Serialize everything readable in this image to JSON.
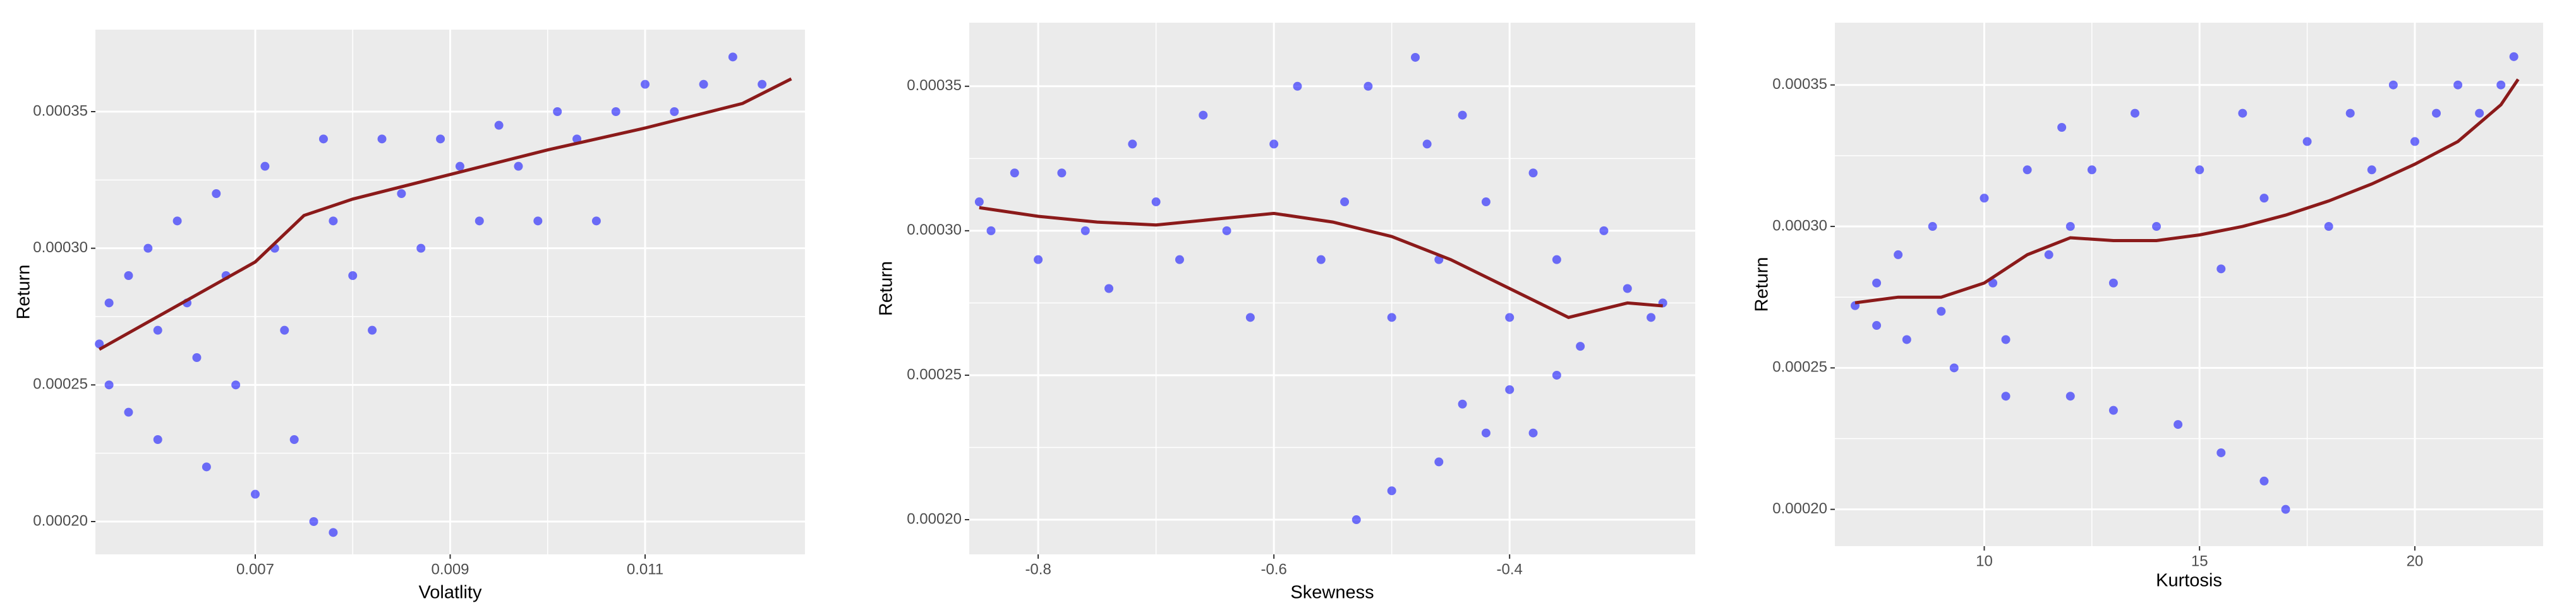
{
  "chart_data": [
    {
      "type": "scatter",
      "x_label": "Volatlity",
      "y_label": "Return",
      "color": "#0000ff",
      "x": [
        0.0054,
        0.0055,
        0.0055,
        0.0057,
        0.0057,
        0.0059,
        0.006,
        0.006,
        0.0062,
        0.0063,
        0.0064,
        0.0065,
        0.0066,
        0.0067,
        0.0068,
        0.007,
        0.0071,
        0.0072,
        0.0073,
        0.0074,
        0.0076,
        0.0078,
        0.0077,
        0.0078,
        0.008,
        0.0082,
        0.0083,
        0.0085,
        0.0087,
        0.0089,
        0.0091,
        0.0093,
        0.0095,
        0.0097,
        0.0099,
        0.0101,
        0.0103,
        0.0105,
        0.0107,
        0.011,
        0.0113,
        0.0116,
        0.0119,
        0.0122
      ],
      "values": [
        0.000265,
        0.00028,
        0.00025,
        0.00029,
        0.00024,
        0.0003,
        0.00027,
        0.00023,
        0.00031,
        0.00028,
        0.00026,
        0.00022,
        0.00032,
        0.00029,
        0.00025,
        0.00021,
        0.00033,
        0.0003,
        0.00027,
        0.00023,
        0.0002,
        0.000196,
        0.00034,
        0.00031,
        0.00029,
        0.00027,
        0.00034,
        0.00032,
        0.0003,
        0.00034,
        0.00033,
        0.00031,
        0.000345,
        0.00033,
        0.00031,
        0.00035,
        0.00034,
        0.00031,
        0.00035,
        0.00036,
        0.00035,
        0.00036,
        0.00037,
        0.00036
      ],
      "smooth": {
        "color": "#8b1a1a",
        "x": [
          0.0054,
          0.006,
          0.007,
          0.0075,
          0.008,
          0.009,
          0.01,
          0.011,
          0.012,
          0.0125
        ],
        "values": [
          0.000263,
          0.000275,
          0.000295,
          0.000312,
          0.000318,
          0.000327,
          0.000336,
          0.000344,
          0.000353,
          0.000362
        ]
      },
      "xlim": [
        0.00536,
        0.01264
      ],
      "ylim": [
        0.000188,
        0.00038
      ],
      "xticks": [
        0.007,
        0.009,
        0.011
      ],
      "yticks": [
        {
          "value": 0.0002,
          "label": "0.00020"
        },
        0.00025,
        {
          "value": 0.0003,
          "label": "0.00030"
        },
        0.00035
      ],
      "grid": true
    },
    {
      "type": "scatter",
      "x_label": "Skewness",
      "y_label": "Return",
      "color": "#0000ff",
      "x": [
        -0.85,
        -0.84,
        -0.82,
        -0.8,
        -0.78,
        -0.76,
        -0.74,
        -0.72,
        -0.7,
        -0.68,
        -0.66,
        -0.64,
        -0.62,
        -0.6,
        -0.58,
        -0.56,
        -0.54,
        -0.52,
        -0.5,
        -0.48,
        -0.47,
        -0.46,
        -0.44,
        -0.42,
        -0.4,
        -0.38,
        -0.36,
        -0.34,
        -0.32,
        -0.3,
        -0.28,
        -0.27,
        -0.36,
        -0.38,
        -0.42,
        -0.46,
        -0.5,
        -0.53,
        -0.44,
        -0.4
      ],
      "values": [
        0.00031,
        0.0003,
        0.00032,
        0.00029,
        0.00032,
        0.0003,
        0.00028,
        0.00033,
        0.00031,
        0.00029,
        0.00034,
        0.0003,
        0.00027,
        0.00033,
        0.00035,
        0.00029,
        0.00031,
        0.00035,
        0.00027,
        0.00036,
        0.00033,
        0.00029,
        0.00034,
        0.00031,
        0.00027,
        0.00032,
        0.00029,
        0.00026,
        0.0003,
        0.00028,
        0.00027,
        0.000275,
        0.00025,
        0.00023,
        0.00023,
        0.00022,
        0.00021,
        0.0002,
        0.00024,
        0.000245
      ],
      "smooth": {
        "color": "#8b1a1a",
        "x": [
          -0.85,
          -0.8,
          -0.75,
          -0.7,
          -0.65,
          -0.6,
          -0.55,
          -0.5,
          -0.45,
          -0.4,
          -0.35,
          -0.3,
          -0.27
        ],
        "values": [
          0.000308,
          0.000305,
          0.000303,
          0.000302,
          0.000304,
          0.000306,
          0.000303,
          0.000298,
          0.00029,
          0.00028,
          0.00027,
          0.000275,
          0.000274
        ]
      },
      "xlim": [
        -0.8585,
        -0.2425
      ],
      "ylim": [
        0.000188,
        0.000372
      ],
      "xticks": [
        -0.8,
        -0.6,
        -0.4
      ],
      "yticks": [
        {
          "value": 0.0002,
          "label": "0.00020"
        },
        0.00025,
        {
          "value": 0.0003,
          "label": "0.00030"
        },
        0.00035
      ],
      "grid": true
    },
    {
      "type": "scatter",
      "x_label": "Kurtosis",
      "y_label": "Return",
      "color": "#0000ff",
      "x": [
        7,
        7.5,
        7.5,
        8,
        8.2,
        8.8,
        9,
        9.3,
        10,
        10.2,
        10.5,
        10.5,
        11,
        11.5,
        11.8,
        12,
        12,
        12.5,
        13,
        13,
        13.5,
        14,
        14.5,
        15,
        15.5,
        15.5,
        16,
        16.5,
        16.5,
        17,
        17.5,
        18,
        18.5,
        19,
        19.5,
        20,
        20.5,
        21,
        21.5,
        22,
        22.3
      ],
      "values": [
        0.000272,
        0.00028,
        0.000265,
        0.00029,
        0.00026,
        0.0003,
        0.00027,
        0.00025,
        0.00031,
        0.00028,
        0.00026,
        0.00024,
        0.00032,
        0.00029,
        0.000335,
        0.0003,
        0.00024,
        0.00032,
        0.00028,
        0.000235,
        0.00034,
        0.0003,
        0.00023,
        0.00032,
        0.000285,
        0.00022,
        0.00034,
        0.00031,
        0.00021,
        0.0002,
        0.00033,
        0.0003,
        0.00034,
        0.00032,
        0.00035,
        0.00033,
        0.00034,
        0.00035,
        0.00034,
        0.00035,
        0.00036
      ],
      "smooth": {
        "color": "#8b1a1a",
        "x": [
          7,
          8,
          9,
          10,
          11,
          12,
          13,
          14,
          15,
          16,
          17,
          18,
          19,
          20,
          21,
          22,
          22.4
        ],
        "values": [
          0.000273,
          0.000275,
          0.000275,
          0.00028,
          0.00029,
          0.000296,
          0.000295,
          0.000295,
          0.000297,
          0.0003,
          0.000304,
          0.000309,
          0.000315,
          0.000322,
          0.00033,
          0.000343,
          0.000352
        ]
      },
      "xlim": [
        6.53,
        22.98
      ],
      "ylim": [
        0.000187,
        0.000372
      ],
      "xticks": [
        10,
        15,
        20
      ],
      "yticks": [
        {
          "value": 0.0002,
          "label": "0.00020"
        },
        0.00025,
        {
          "value": 0.0003,
          "label": "0.00030"
        },
        0.00035
      ],
      "grid": true
    }
  ]
}
